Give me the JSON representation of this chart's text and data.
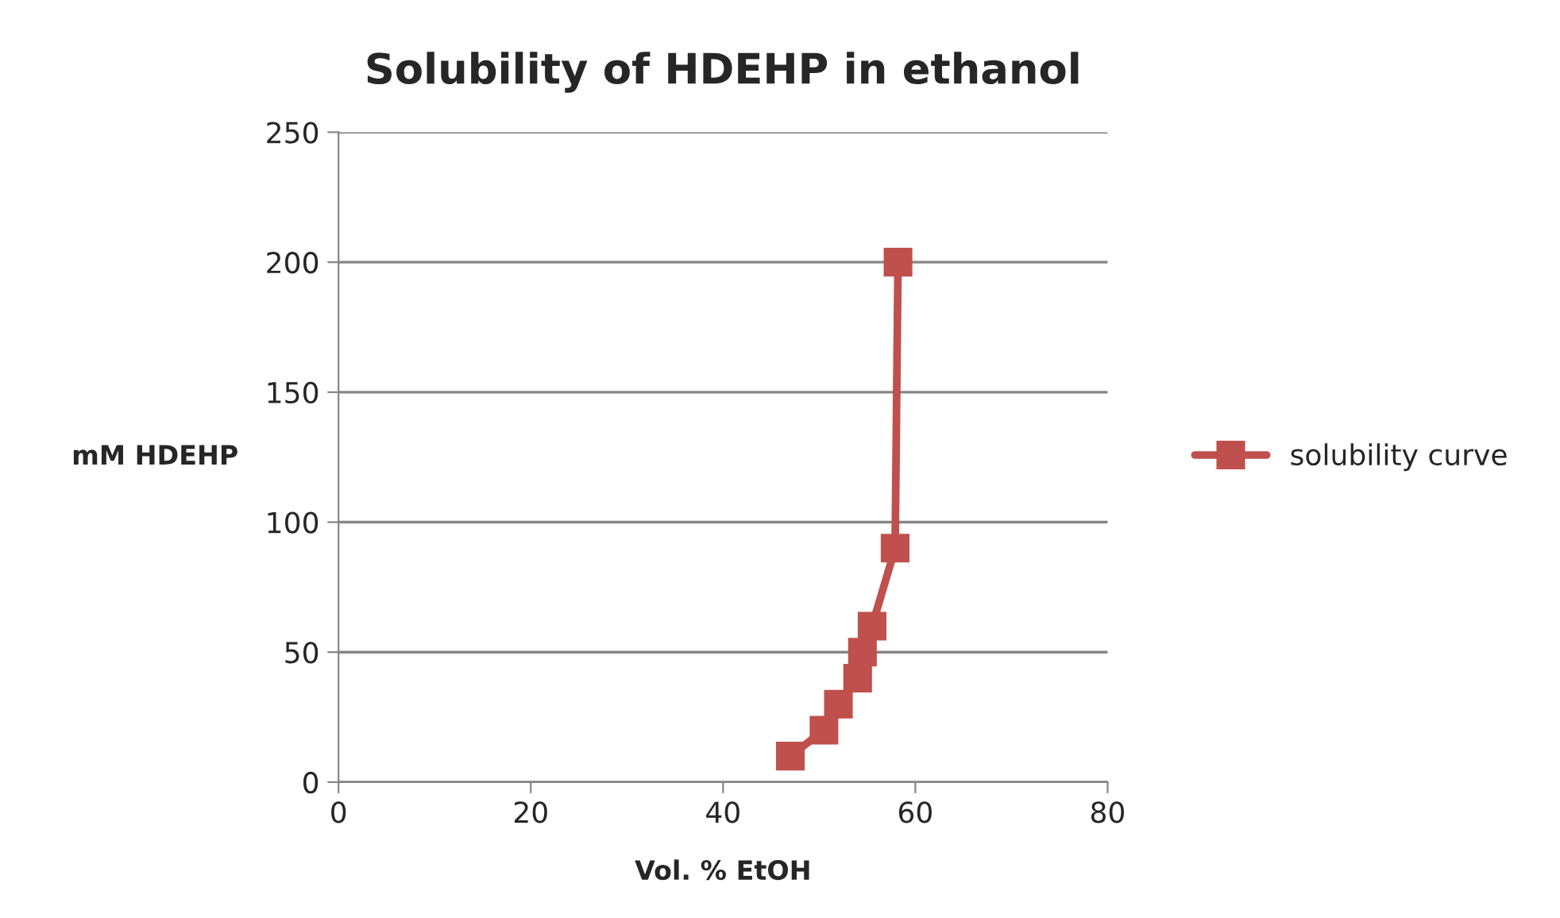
{
  "chart_data": {
    "type": "line",
    "title": "Solubility of HDEHP in ethanol",
    "xlabel": "Vol. % EtOH",
    "ylabel": "mM HDEHP",
    "series": [
      {
        "name": "solubility curve",
        "color": "#c0504d",
        "x": [
          47.0,
          50.5,
          52.0,
          54.0,
          54.5,
          55.5,
          57.9,
          58.2
        ],
        "values": [
          10,
          20,
          30,
          40,
          50,
          60,
          90,
          200
        ]
      }
    ],
    "xlim": [
      0,
      80
    ],
    "xticks": [
      0,
      20,
      40,
      60,
      80
    ],
    "ylim": [
      0,
      250
    ],
    "yticks": [
      0,
      50,
      100,
      150,
      200,
      250
    ],
    "grid": "y",
    "legend": "right",
    "marker": "square",
    "line_style": "solid"
  }
}
